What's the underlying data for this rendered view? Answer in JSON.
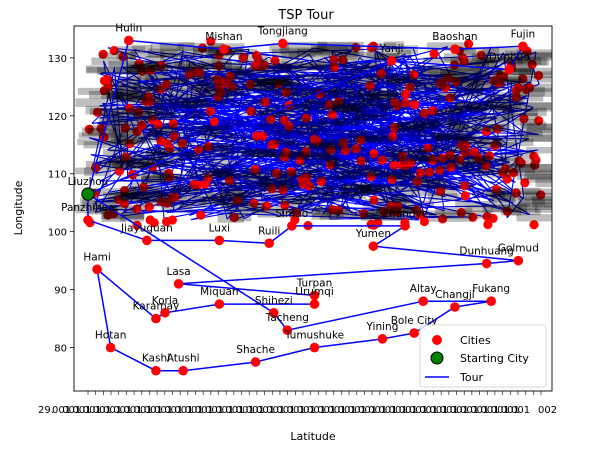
{
  "chart_data": {
    "type": "scatter",
    "title": "TSP Tour",
    "xlabel": "Latitude",
    "ylabel": "Longitude",
    "ylim": [
      72.5,
      135.5
    ],
    "yticks": [
      80,
      90,
      100,
      110,
      120,
      130
    ],
    "x_tick_fragments": [
      "29.",
      "001",
      "002"
    ],
    "grid": false,
    "legend_position": "bottom-right",
    "legend": [
      {
        "label": "Cities",
        "marker": "circle",
        "color": "#ff0000"
      },
      {
        "label": "Starting City",
        "marker": "circle",
        "color": "#008000",
        "edge": "#000000"
      },
      {
        "label": "Tour",
        "marker": "line",
        "color": "#0000ff"
      }
    ],
    "series": [
      {
        "name": "Cities",
        "points": [
          {
            "name": "Hulin",
            "x": 0.09,
            "y": 133.0
          },
          {
            "name": "Tongjiang",
            "x": 0.43,
            "y": 132.5
          },
          {
            "name": "Fujin",
            "x": 0.96,
            "y": 132.0
          },
          {
            "name": "Baoshan",
            "x": 0.81,
            "y": 131.5
          },
          {
            "name": "Mishan",
            "x": 0.3,
            "y": 131.5
          },
          {
            "name": "Yanji",
            "x": 0.67,
            "y": 129.5
          },
          {
            "name": "Dunhua",
            "x": 0.93,
            "y": 128.0
          },
          {
            "name": "Liuzhou",
            "x": 0.0,
            "y": 106.5
          },
          {
            "name": "Panzhihua",
            "x": 0.0,
            "y": 102.0
          },
          {
            "name": "Jiayuguan",
            "x": 0.13,
            "y": 98.5
          },
          {
            "name": "Luxi",
            "x": 0.29,
            "y": 98.5
          },
          {
            "name": "Ruili",
            "x": 0.4,
            "y": 98.0
          },
          {
            "name": "Simao",
            "x": 0.45,
            "y": 101.0
          },
          {
            "name": "Zhangye",
            "x": 0.7,
            "y": 101.0
          },
          {
            "name": "Yumen",
            "x": 0.63,
            "y": 97.5
          },
          {
            "name": "Hami",
            "x": 0.02,
            "y": 93.5
          },
          {
            "name": "Dunhuang",
            "x": 0.88,
            "y": 94.5
          },
          {
            "name": "Golmud",
            "x": 0.95,
            "y": 95.0
          },
          {
            "name": "Lasa",
            "x": 0.2,
            "y": 91.0
          },
          {
            "name": "Turpan",
            "x": 0.5,
            "y": 89.0
          },
          {
            "name": "Korla",
            "x": 0.17,
            "y": 86.0
          },
          {
            "name": "Miquan",
            "x": 0.29,
            "y": 87.5
          },
          {
            "name": "Shihezi",
            "x": 0.41,
            "y": 86.0
          },
          {
            "name": "Urumqi",
            "x": 0.5,
            "y": 87.5
          },
          {
            "name": "Altay",
            "x": 0.74,
            "y": 88.0
          },
          {
            "name": "Fukang",
            "x": 0.89,
            "y": 88.0
          },
          {
            "name": "Changji",
            "x": 0.81,
            "y": 87.0
          },
          {
            "name": "Karamay",
            "x": 0.15,
            "y": 85.0
          },
          {
            "name": "Tacheng",
            "x": 0.44,
            "y": 83.0
          },
          {
            "name": "Yining",
            "x": 0.65,
            "y": 81.5
          },
          {
            "name": "Tumushuke",
            "x": 0.5,
            "y": 80.0
          },
          {
            "name": "Bole City",
            "x": 0.72,
            "y": 82.5
          },
          {
            "name": "Hotan",
            "x": 0.05,
            "y": 80.0
          },
          {
            "name": "Kashi",
            "x": 0.15,
            "y": 76.0
          },
          {
            "name": "Atushi",
            "x": 0.21,
            "y": 76.0
          },
          {
            "name": "Shache",
            "x": 0.37,
            "y": 77.5
          }
        ]
      },
      {
        "name": "Starting City",
        "points": [
          {
            "name": "Liuzhou",
            "x": 0.0,
            "y": 106.5
          }
        ]
      }
    ]
  }
}
